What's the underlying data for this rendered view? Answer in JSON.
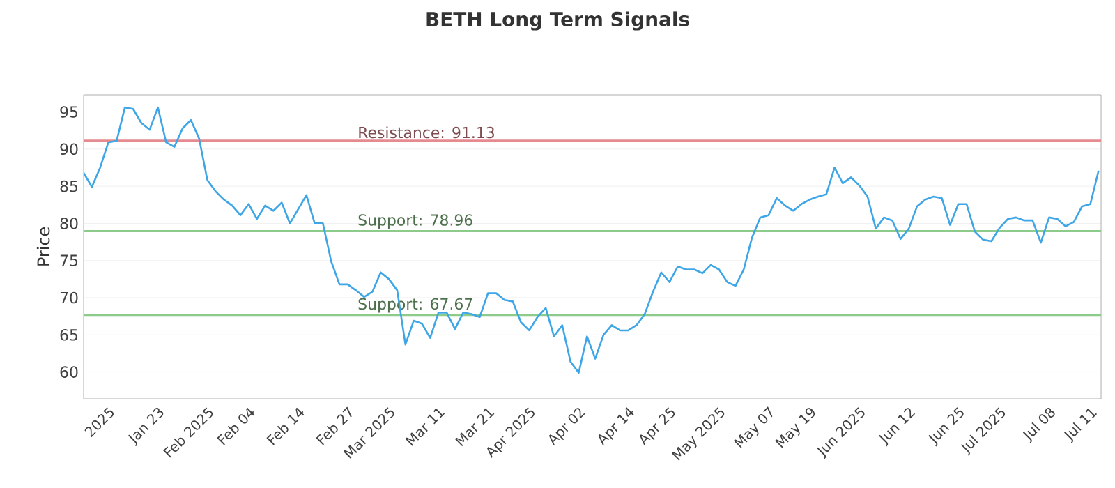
{
  "chart_data": {
    "type": "line",
    "title": "BETH Long Term Signals",
    "ylabel": "Price",
    "grid": "y",
    "ylim": [
      56.4,
      97.3
    ],
    "categories": [
      null,
      null,
      null,
      "2025",
      null,
      null,
      null,
      null,
      null,
      "Jan 23",
      null,
      null,
      null,
      null,
      null,
      "Feb 2025",
      null,
      null,
      null,
      null,
      "Feb 04",
      null,
      null,
      null,
      null,
      null,
      "Feb 14",
      null,
      null,
      null,
      null,
      null,
      "Feb 27",
      null,
      null,
      null,
      null,
      "Mar 2025",
      null,
      null,
      null,
      null,
      null,
      "Mar 11",
      null,
      null,
      null,
      null,
      null,
      "Mar 21",
      null,
      null,
      null,
      null,
      "Apr 2025",
      null,
      null,
      null,
      null,
      null,
      "Apr 02",
      null,
      null,
      null,
      null,
      null,
      "Apr 14",
      null,
      null,
      null,
      null,
      "Apr 25",
      null,
      null,
      null,
      null,
      null,
      "May 2025",
      null,
      null,
      null,
      null,
      null,
      "May 07",
      null,
      null,
      null,
      null,
      "May 19",
      null,
      null,
      null,
      null,
      null,
      "Jun 2025",
      null,
      null,
      null,
      null,
      null,
      "Jun 12",
      null,
      null,
      null,
      null,
      null,
      "Jun 25",
      null,
      null,
      null,
      null,
      "Jul 2025",
      null,
      null,
      null,
      null,
      null,
      "Jul 08",
      null,
      null,
      null,
      null,
      "Jul 11",
      null
    ],
    "yticks": [
      60,
      65,
      70,
      75,
      80,
      85,
      90,
      95
    ],
    "ref_lines": [
      {
        "axis": "y",
        "value": 91.13,
        "label": "Resistance: 91.13",
        "color": "#e58a8f"
      },
      {
        "axis": "y",
        "value": 78.96,
        "label": "Support: 78.96",
        "color": "#8ccb8a"
      },
      {
        "axis": "y",
        "value": 67.67,
        "label": "Support: 67.67",
        "color": "#8ccb8a"
      }
    ],
    "series": [
      {
        "color": "#3ea6e6",
        "values": [
          86.8,
          84.9,
          87.5,
          90.9,
          91.1,
          95.6,
          95.4,
          93.5,
          92.6,
          95.6,
          90.9,
          90.3,
          92.8,
          93.9,
          91.4,
          85.8,
          84.3,
          83.2,
          82.4,
          81.1,
          82.6,
          80.6,
          82.4,
          81.7,
          82.8,
          80.0,
          81.9,
          83.8,
          80.0,
          80.0,
          74.9,
          71.8,
          71.8,
          71.0,
          70.1,
          70.8,
          73.4,
          72.5,
          71.0,
          63.7,
          66.9,
          66.5,
          64.6,
          68.0,
          68.0,
          65.8,
          68.0,
          67.8,
          67.4,
          70.6,
          70.6,
          69.7,
          69.5,
          66.7,
          65.6,
          67.4,
          68.6,
          64.8,
          66.3,
          61.4,
          59.9,
          64.8,
          61.8,
          65.0,
          66.3,
          65.6,
          65.6,
          66.3,
          67.8,
          70.8,
          73.4,
          72.1,
          74.2,
          73.8,
          73.8,
          73.3,
          74.4,
          73.8,
          72.1,
          71.6,
          73.8,
          78.1,
          80.8,
          81.1,
          83.4,
          82.4,
          81.7,
          82.6,
          83.2,
          83.6,
          83.9,
          87.5,
          85.4,
          86.2,
          85.1,
          83.6,
          79.3,
          80.8,
          80.4,
          77.9,
          79.3,
          82.3,
          83.2,
          83.6,
          83.4,
          79.8,
          82.6,
          82.6,
          78.9,
          77.8,
          77.6,
          79.4,
          80.6,
          80.8,
          80.4,
          80.4,
          77.4,
          80.8,
          80.6,
          79.6,
          80.2,
          82.3,
          82.6,
          87.1
        ]
      }
    ]
  }
}
